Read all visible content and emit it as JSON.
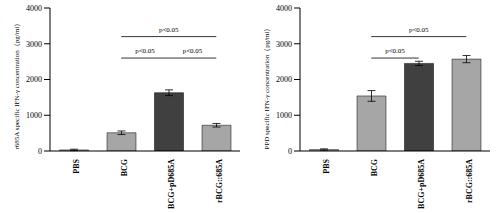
{
  "chart_data": [
    {
      "type": "bar",
      "ylabel": "r685A specific IFN-γ concentration（pg/ml）",
      "categories": [
        "PBS",
        "BCG",
        "BCG+pD685A",
        "rBCG::685A"
      ],
      "values": [
        30,
        510,
        1630,
        720
      ],
      "errors": [
        20,
        50,
        80,
        50
      ],
      "colors": [
        "#bfbfbf",
        "#a6a6a6",
        "#404040",
        "#a6a6a6"
      ],
      "ylim": [
        0,
        4000
      ],
      "yticks": [
        0,
        1000,
        2000,
        3000,
        4000
      ],
      "comparisons": [
        {
          "from": "BCG",
          "to": "BCG+pD685A",
          "label": "p<0.05"
        },
        {
          "from": "BCG+pD685A",
          "to": "rBCG::685A",
          "label": "p<0.05"
        },
        {
          "from": "BCG",
          "to": "rBCG::685A",
          "label": "p<0.05"
        }
      ]
    },
    {
      "type": "bar",
      "ylabel": "PPD specific IFN-γ concentration（pg/ml）",
      "categories": [
        "PBS",
        "BCG",
        "BCG+pD685A",
        "rBCG::685A"
      ],
      "values": [
        40,
        1540,
        2450,
        2570
      ],
      "errors": [
        20,
        150,
        60,
        100
      ],
      "colors": [
        "#bfbfbf",
        "#a6a6a6",
        "#404040",
        "#a6a6a6"
      ],
      "ylim": [
        0,
        4000
      ],
      "yticks": [
        0,
        1000,
        2000,
        3000,
        4000
      ],
      "comparisons": [
        {
          "from": "BCG",
          "to": "BCG+pD685A",
          "label": "p<0.05"
        },
        {
          "from": "BCG",
          "to": "rBCG::685A",
          "label": "p<0.05"
        }
      ]
    }
  ]
}
